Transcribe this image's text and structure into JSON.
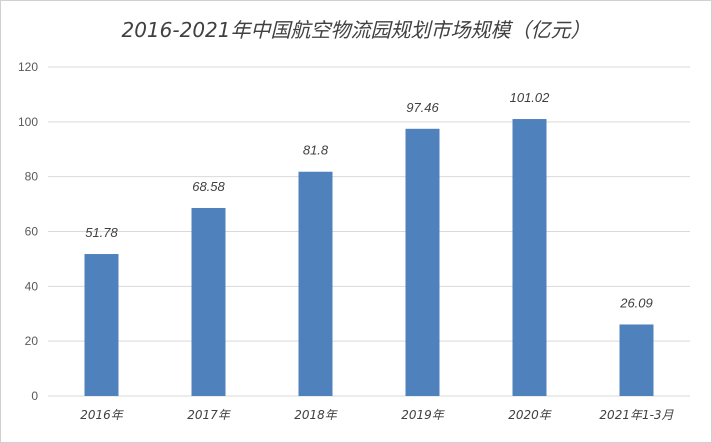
{
  "chart_data": {
    "type": "bar",
    "title": "2016-2021年中国航空物流园规划市场规模（亿元）",
    "categories": [
      "2016年",
      "2017年",
      "2018年",
      "2019年",
      "2020年",
      "2021年1-3月"
    ],
    "values": [
      51.78,
      68.58,
      81.8,
      97.46,
      101.02,
      26.09
    ],
    "value_labels": [
      "51.78",
      "68.58",
      "81.8",
      "97.46",
      "101.02",
      "26.09"
    ],
    "ylim": [
      0,
      120
    ],
    "yticks": [
      0,
      20,
      40,
      60,
      80,
      100,
      120
    ],
    "grid": true,
    "legend": "none",
    "bar_color": "#4f81bd"
  }
}
